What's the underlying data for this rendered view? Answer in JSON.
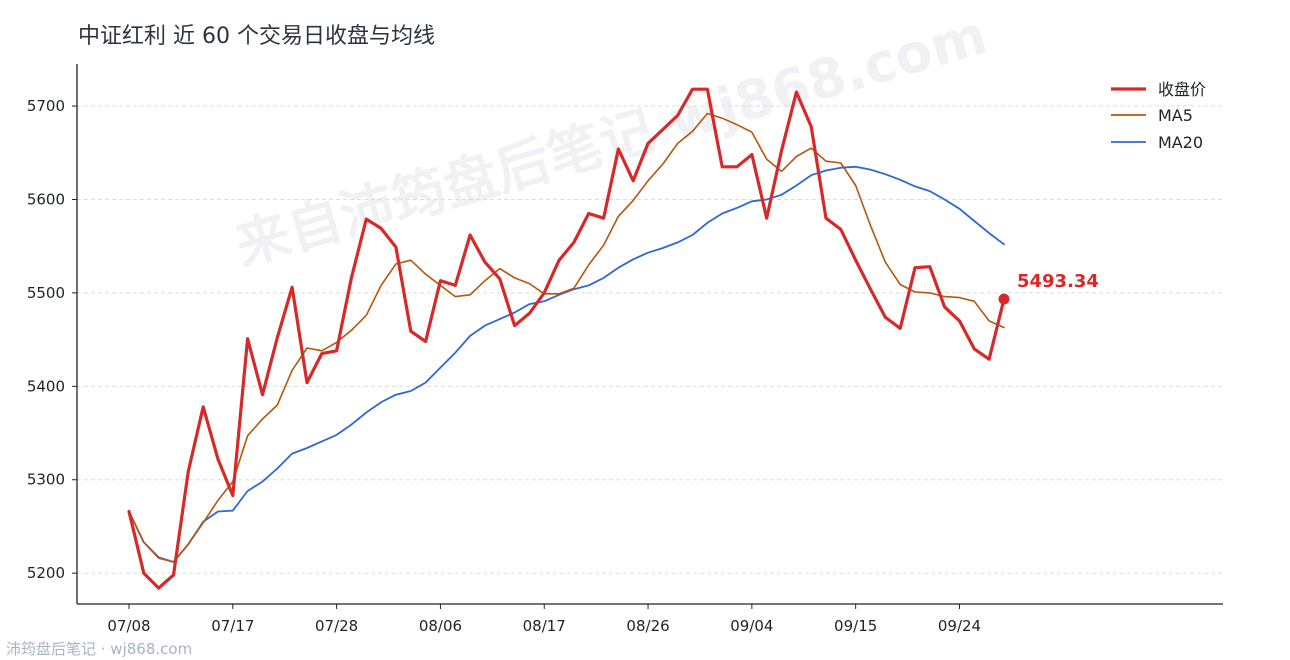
{
  "title": "中证红利 近 60 个交易日收盘与均线",
  "footer": "沛筠盘后笔记 · wj868.com",
  "watermark": "来自沛筠盘后笔记 wj868.com",
  "colors": {
    "close": "#d62a2a",
    "ma5": "#b8560c",
    "ma20": "#2e68d6",
    "grid": "#dddddd",
    "axis": "#222222"
  },
  "chart_data": {
    "type": "line",
    "title": "中证红利 近 60 个交易日收盘与均线",
    "xlabel": "",
    "ylabel": "",
    "ylim": [
      5167,
      5745
    ],
    "yticks": [
      5200,
      5300,
      5400,
      5500,
      5600,
      5700
    ],
    "xtick_labels": [
      "07/08",
      "07/17",
      "07/28",
      "08/06",
      "08/17",
      "08/26",
      "09/04",
      "09/15",
      "09/24"
    ],
    "xtick_index": [
      0,
      7,
      14,
      21,
      28,
      35,
      42,
      49,
      56
    ],
    "n_points": 60,
    "grid": "horizontal dashed",
    "legend": "top-right",
    "series": [
      {
        "name": "收盘价",
        "values": [
          5266,
          5200,
          5184,
          5198,
          5309,
          5378,
          5322,
          5283,
          5451,
          5391,
          5452,
          5506,
          5404,
          5435,
          5438,
          5516,
          5579,
          5569,
          5549,
          5459,
          5448,
          5513,
          5508,
          5562,
          5533,
          5515,
          5465,
          5478,
          5500,
          5535,
          5554,
          5585,
          5580,
          5654,
          5620,
          5660,
          5675,
          5690,
          5718,
          5718,
          5635,
          5635,
          5648,
          5580,
          5652,
          5715,
          5678,
          5580,
          5568,
          5535,
          5504,
          5474,
          5462,
          5527,
          5528,
          5485,
          5470,
          5440,
          5429,
          5493.34
        ]
      },
      {
        "name": "MA5",
        "values": [
          5266,
          5233,
          5216,
          5212,
          5231,
          5254,
          5278,
          5298,
          5347,
          5365,
          5380,
          5417,
          5441,
          5438,
          5447,
          5460,
          5476,
          5508,
          5531,
          5535,
          5520,
          5508,
          5496,
          5498,
          5513,
          5526,
          5516,
          5510,
          5499,
          5499,
          5505,
          5530,
          5551,
          5582,
          5599,
          5620,
          5638,
          5660,
          5673,
          5692,
          5687,
          5680,
          5672,
          5643,
          5630,
          5646,
          5655,
          5641,
          5639,
          5615,
          5572,
          5533,
          5509,
          5501,
          5500,
          5496,
          5495,
          5491,
          5470,
          5463
        ]
      },
      {
        "name": "MA20",
        "values": [
          5266,
          5233,
          5217,
          5212,
          5231,
          5255,
          5266,
          5267,
          5288,
          5298,
          5312,
          5328,
          5334,
          5341,
          5348,
          5359,
          5372,
          5383,
          5391,
          5395,
          5404,
          5420,
          5436,
          5454,
          5465,
          5472,
          5479,
          5488,
          5491,
          5498,
          5504,
          5508,
          5516,
          5527,
          5536,
          5543,
          5548,
          5554,
          5562,
          5575,
          5585,
          5591,
          5598,
          5600,
          5605,
          5615,
          5626,
          5631,
          5634,
          5635,
          5632,
          5627,
          5621,
          5614,
          5609,
          5600,
          5590,
          5577,
          5564,
          5552
        ]
      }
    ],
    "last_value_label": "5493.34"
  }
}
